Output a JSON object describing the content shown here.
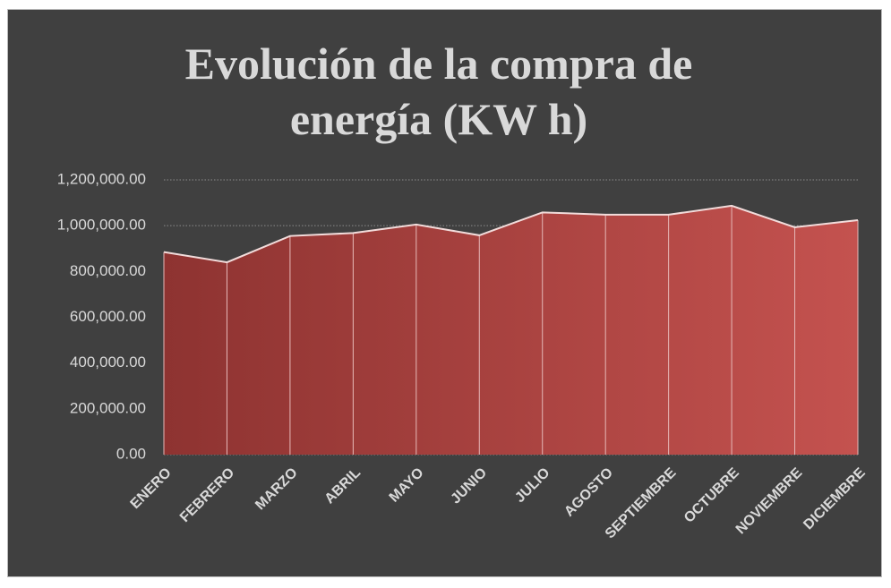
{
  "chart_data": {
    "type": "area",
    "title": "Evolución de la compra de energía (KW h)",
    "categories": [
      "ENERO",
      "FEBRERO",
      "MARZO",
      "ABRIL",
      "MAYO",
      "JUNIO",
      "JULIO",
      "AGOSTO",
      "SEPTIEMBRE",
      "OCTUBRE",
      "NOVIEMBRE",
      "DICIEMBRE"
    ],
    "values": [
      885000,
      840000,
      955000,
      968000,
      1005000,
      958000,
      1058000,
      1048000,
      1048000,
      1087000,
      993000,
      1024000
    ],
    "color": "#c0504d",
    "ylim": [
      0,
      1200000
    ],
    "yticks": [
      {
        "value": 0,
        "label": "0.00"
      },
      {
        "value": 200000,
        "label": "200,000.00"
      },
      {
        "value": 400000,
        "label": "400,000.00"
      },
      {
        "value": 600000,
        "label": "600,000.00"
      },
      {
        "value": 800000,
        "label": "800,000.00"
      },
      {
        "value": 1000000,
        "label": "1,000,000.00"
      },
      {
        "value": 1200000,
        "label": "1,200,000.00"
      }
    ],
    "grid": true
  }
}
